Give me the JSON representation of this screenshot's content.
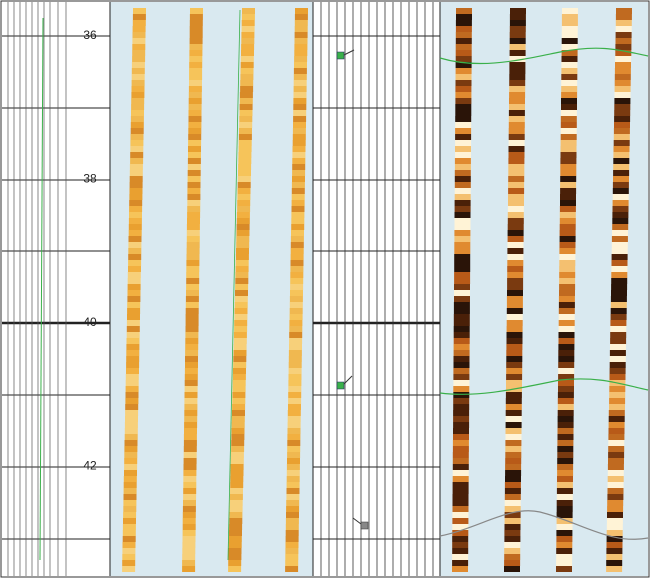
{
  "depth_track": {
    "labels": [
      36,
      38,
      40,
      42
    ]
  }
}
